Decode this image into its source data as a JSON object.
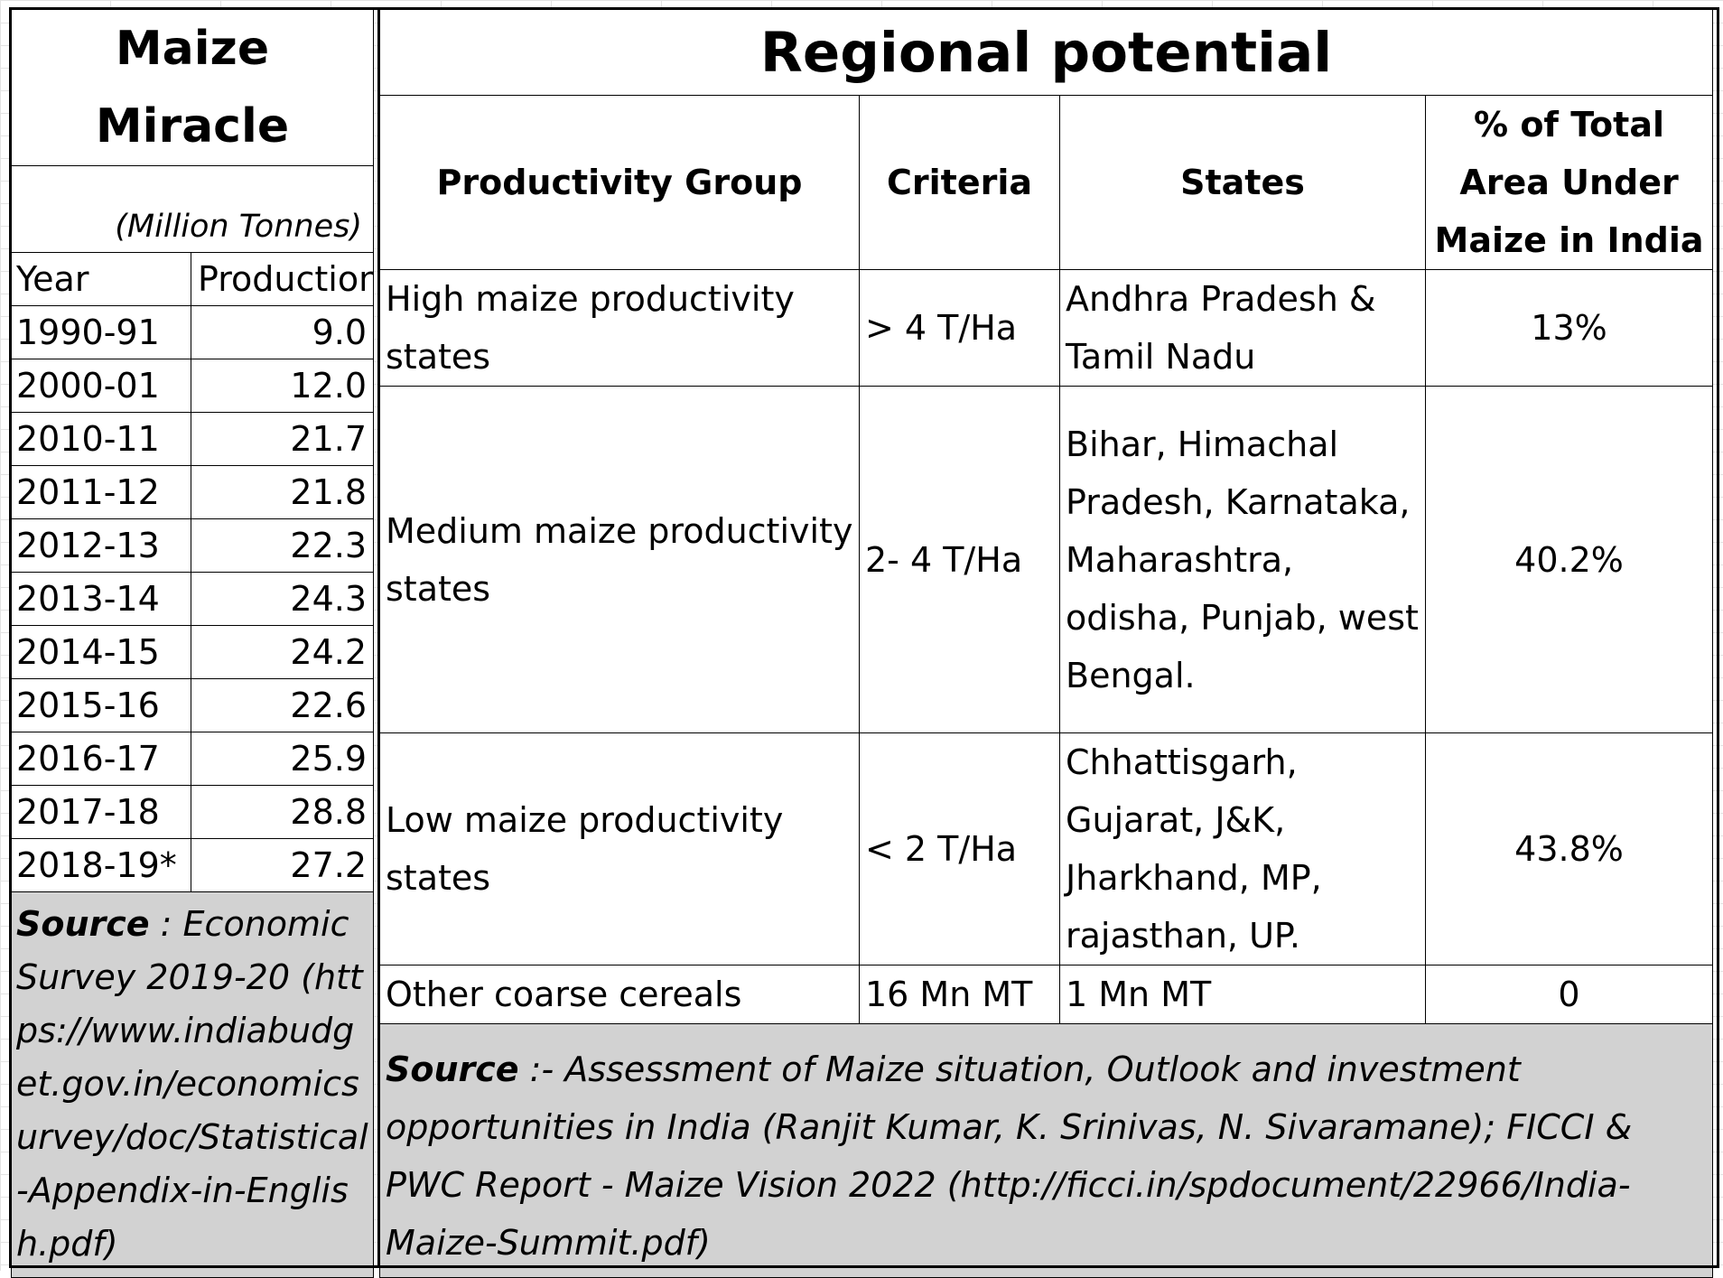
{
  "left_table": {
    "title": "Maize Miracle",
    "unit": "(Million Tonnes)",
    "col_year": "Year",
    "col_production": "Production",
    "rows": [
      {
        "year": "1990-91",
        "production": "9.0"
      },
      {
        "year": "2000-01",
        "production": "12.0"
      },
      {
        "year": "2010-11",
        "production": "21.7"
      },
      {
        "year": "2011-12",
        "production": "21.8"
      },
      {
        "year": "2012-13",
        "production": "22.3"
      },
      {
        "year": "2013-14",
        "production": "24.3"
      },
      {
        "year": "2014-15",
        "production": "24.2"
      },
      {
        "year": "2015-16",
        "production": "22.6"
      },
      {
        "year": "2016-17",
        "production": "25.9"
      },
      {
        "year": "2017-18",
        "production": "28.8"
      },
      {
        "year": "2018-19*",
        "production": "27.2"
      }
    ],
    "source_label": "Source",
    "source_text": " : Economic Survey 2019-20 (https://www.indiabudget.gov.in/economicsurvey/doc/Statistical-Appendix-in-English.pdf)"
  },
  "right_table": {
    "title": "Regional potential",
    "headers": {
      "group": "Productivity Group",
      "criteria": "Criteria",
      "states": "States",
      "area": "% of Total Area Under Maize in India"
    },
    "rows": [
      {
        "group": "High maize productivity states",
        "criteria": "> 4 T/Ha",
        "states": "Andhra Pradesh & Tamil Nadu",
        "area": "13%"
      },
      {
        "group": "Medium maize productivity states",
        "criteria": "2- 4 T/Ha",
        "states": "Bihar, Himachal Pradesh, Karnataka, Maharashtra, odisha, Punjab, west Bengal.",
        "area": "40.2%"
      },
      {
        "group": "Low maize productivity states",
        "criteria": "< 2 T/Ha",
        "states": "Chhattisgarh, Gujarat, J&K, Jharkhand, MP, rajasthan, UP.",
        "area": "43.8%"
      },
      {
        "group": "Other coarse cereals",
        "criteria": "16 Mn MT",
        "states": "1 Mn MT",
        "area": "0"
      }
    ],
    "source_label": "Source",
    "source_text": " :- Assessment of Maize situation, Outlook and investment opportunities in India (Ranjit Kumar, K. Srinivas, N. Sivaramane);  FICCI & PWC Report - Maize Vision 2022  (http://ficci.in/spdocument/22966/India-Maize-Summit.pdf)"
  }
}
